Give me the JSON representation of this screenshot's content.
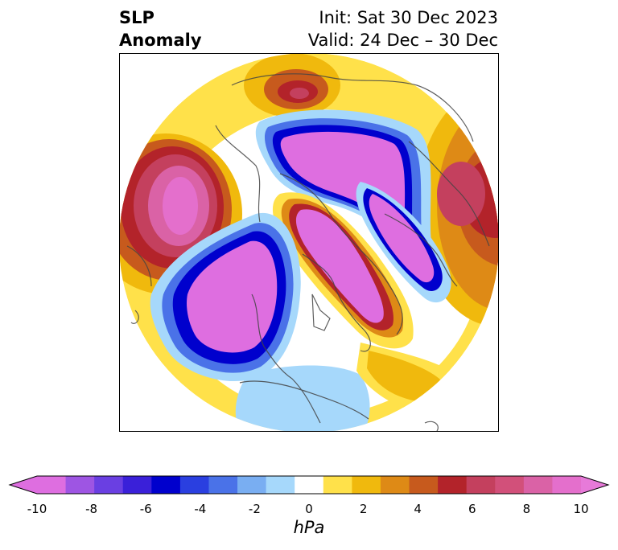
{
  "header": {
    "title_line1": "SLP",
    "title_line2": "Anomaly",
    "init_label": "Init: Sat 30 Dec 2023",
    "valid_label": "Valid: 24 Dec – 30 Dec"
  },
  "map": {
    "projection": "north-polar-stereographic",
    "fill_colors": {
      "neg_strong": "#de6ee0",
      "neg_violet": "#a056e3",
      "neg_blue": "#0000cd",
      "neg_mid": "#4a72e8",
      "neg_light": "#a6d8fb",
      "pos_yellow": "#ffe14a",
      "pos_orange": "#e3a51e",
      "pos_red": "#b3232a",
      "pos_pink": "#e46fcc",
      "land_outline": "#444444"
    }
  },
  "colorbar": {
    "unit": "hPa",
    "tick_labels": [
      "-10",
      "-8",
      "-6",
      "-4",
      "-2",
      "0",
      "2",
      "4",
      "6",
      "8",
      "10"
    ],
    "tick_values": [
      -10,
      -8,
      -6,
      -4,
      -2,
      0,
      2,
      4,
      6,
      8,
      10
    ],
    "bins": [
      "#de6ee0",
      "#9e55e3",
      "#6a3fe2",
      "#3a20d9",
      "#0000cd",
      "#2a3fe0",
      "#4a72e8",
      "#79aef2",
      "#a6d8fb",
      "#ffffff",
      "#ffe14a",
      "#f0b90d",
      "#de8a16",
      "#c75a1d",
      "#b3232a",
      "#c4405e",
      "#d2507a",
      "#da62a6",
      "#e46fcc"
    ],
    "extend_low_color": "#de6ee0",
    "extend_high_color": "#e77ad9"
  }
}
